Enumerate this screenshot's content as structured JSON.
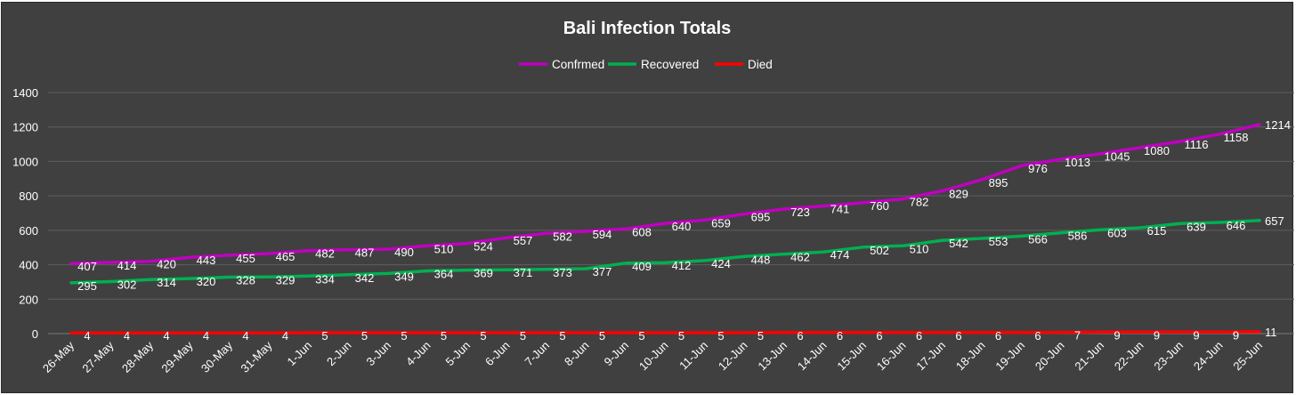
{
  "chart_data": {
    "type": "line",
    "title": "Bali Infection Totals",
    "xlabel": "",
    "ylabel": "",
    "ylim": [
      0,
      1400
    ],
    "yticks": [
      0,
      200,
      400,
      600,
      800,
      1000,
      1200,
      1400
    ],
    "grid": true,
    "legend_position": "top-center",
    "categories": [
      "26-May",
      "27-May",
      "28-May",
      "29-May",
      "30-May",
      "31-May",
      "1-Jun",
      "2-Jun",
      "3-Jun",
      "4-Jun",
      "5-Jun",
      "6-Jun",
      "7-Jun",
      "8-Jun",
      "9-Jun",
      "10-Jun",
      "11-Jun",
      "12-Jun",
      "13-Jun",
      "14-Jun",
      "15-Jun",
      "16-Jun",
      "17-Jun",
      "18-Jun",
      "19-Jun",
      "20-Jun",
      "21-Jun",
      "22-Jun",
      "23-Jun",
      "24-Jun",
      "25-Jun"
    ],
    "series": [
      {
        "name": "Confrmed",
        "color": "#c000c0",
        "values": [
          407,
          414,
          420,
          443,
          455,
          465,
          482,
          487,
          490,
          510,
          524,
          557,
          582,
          594,
          608,
          640,
          659,
          695,
          723,
          741,
          760,
          782,
          829,
          895,
          976,
          1013,
          1045,
          1080,
          1116,
          1158,
          1214
        ]
      },
      {
        "name": "Recovered",
        "color": "#00b050",
        "values": [
          295,
          302,
          314,
          320,
          328,
          329,
          334,
          342,
          349,
          364,
          369,
          371,
          373,
          377,
          409,
          412,
          424,
          448,
          462,
          474,
          502,
          510,
          542,
          553,
          566,
          586,
          603,
          615,
          639,
          646,
          657
        ]
      },
      {
        "name": "Died",
        "color": "#ff0000",
        "values": [
          4,
          4,
          4,
          4,
          4,
          4,
          5,
          5,
          5,
          5,
          5,
          5,
          5,
          5,
          5,
          5,
          5,
          5,
          6,
          6,
          6,
          6,
          6,
          6,
          6,
          7,
          9,
          9,
          9,
          9,
          11
        ]
      }
    ],
    "colors": {
      "background": "#404040",
      "gridline": "#5e5e5e",
      "text": "#ffffff"
    }
  }
}
